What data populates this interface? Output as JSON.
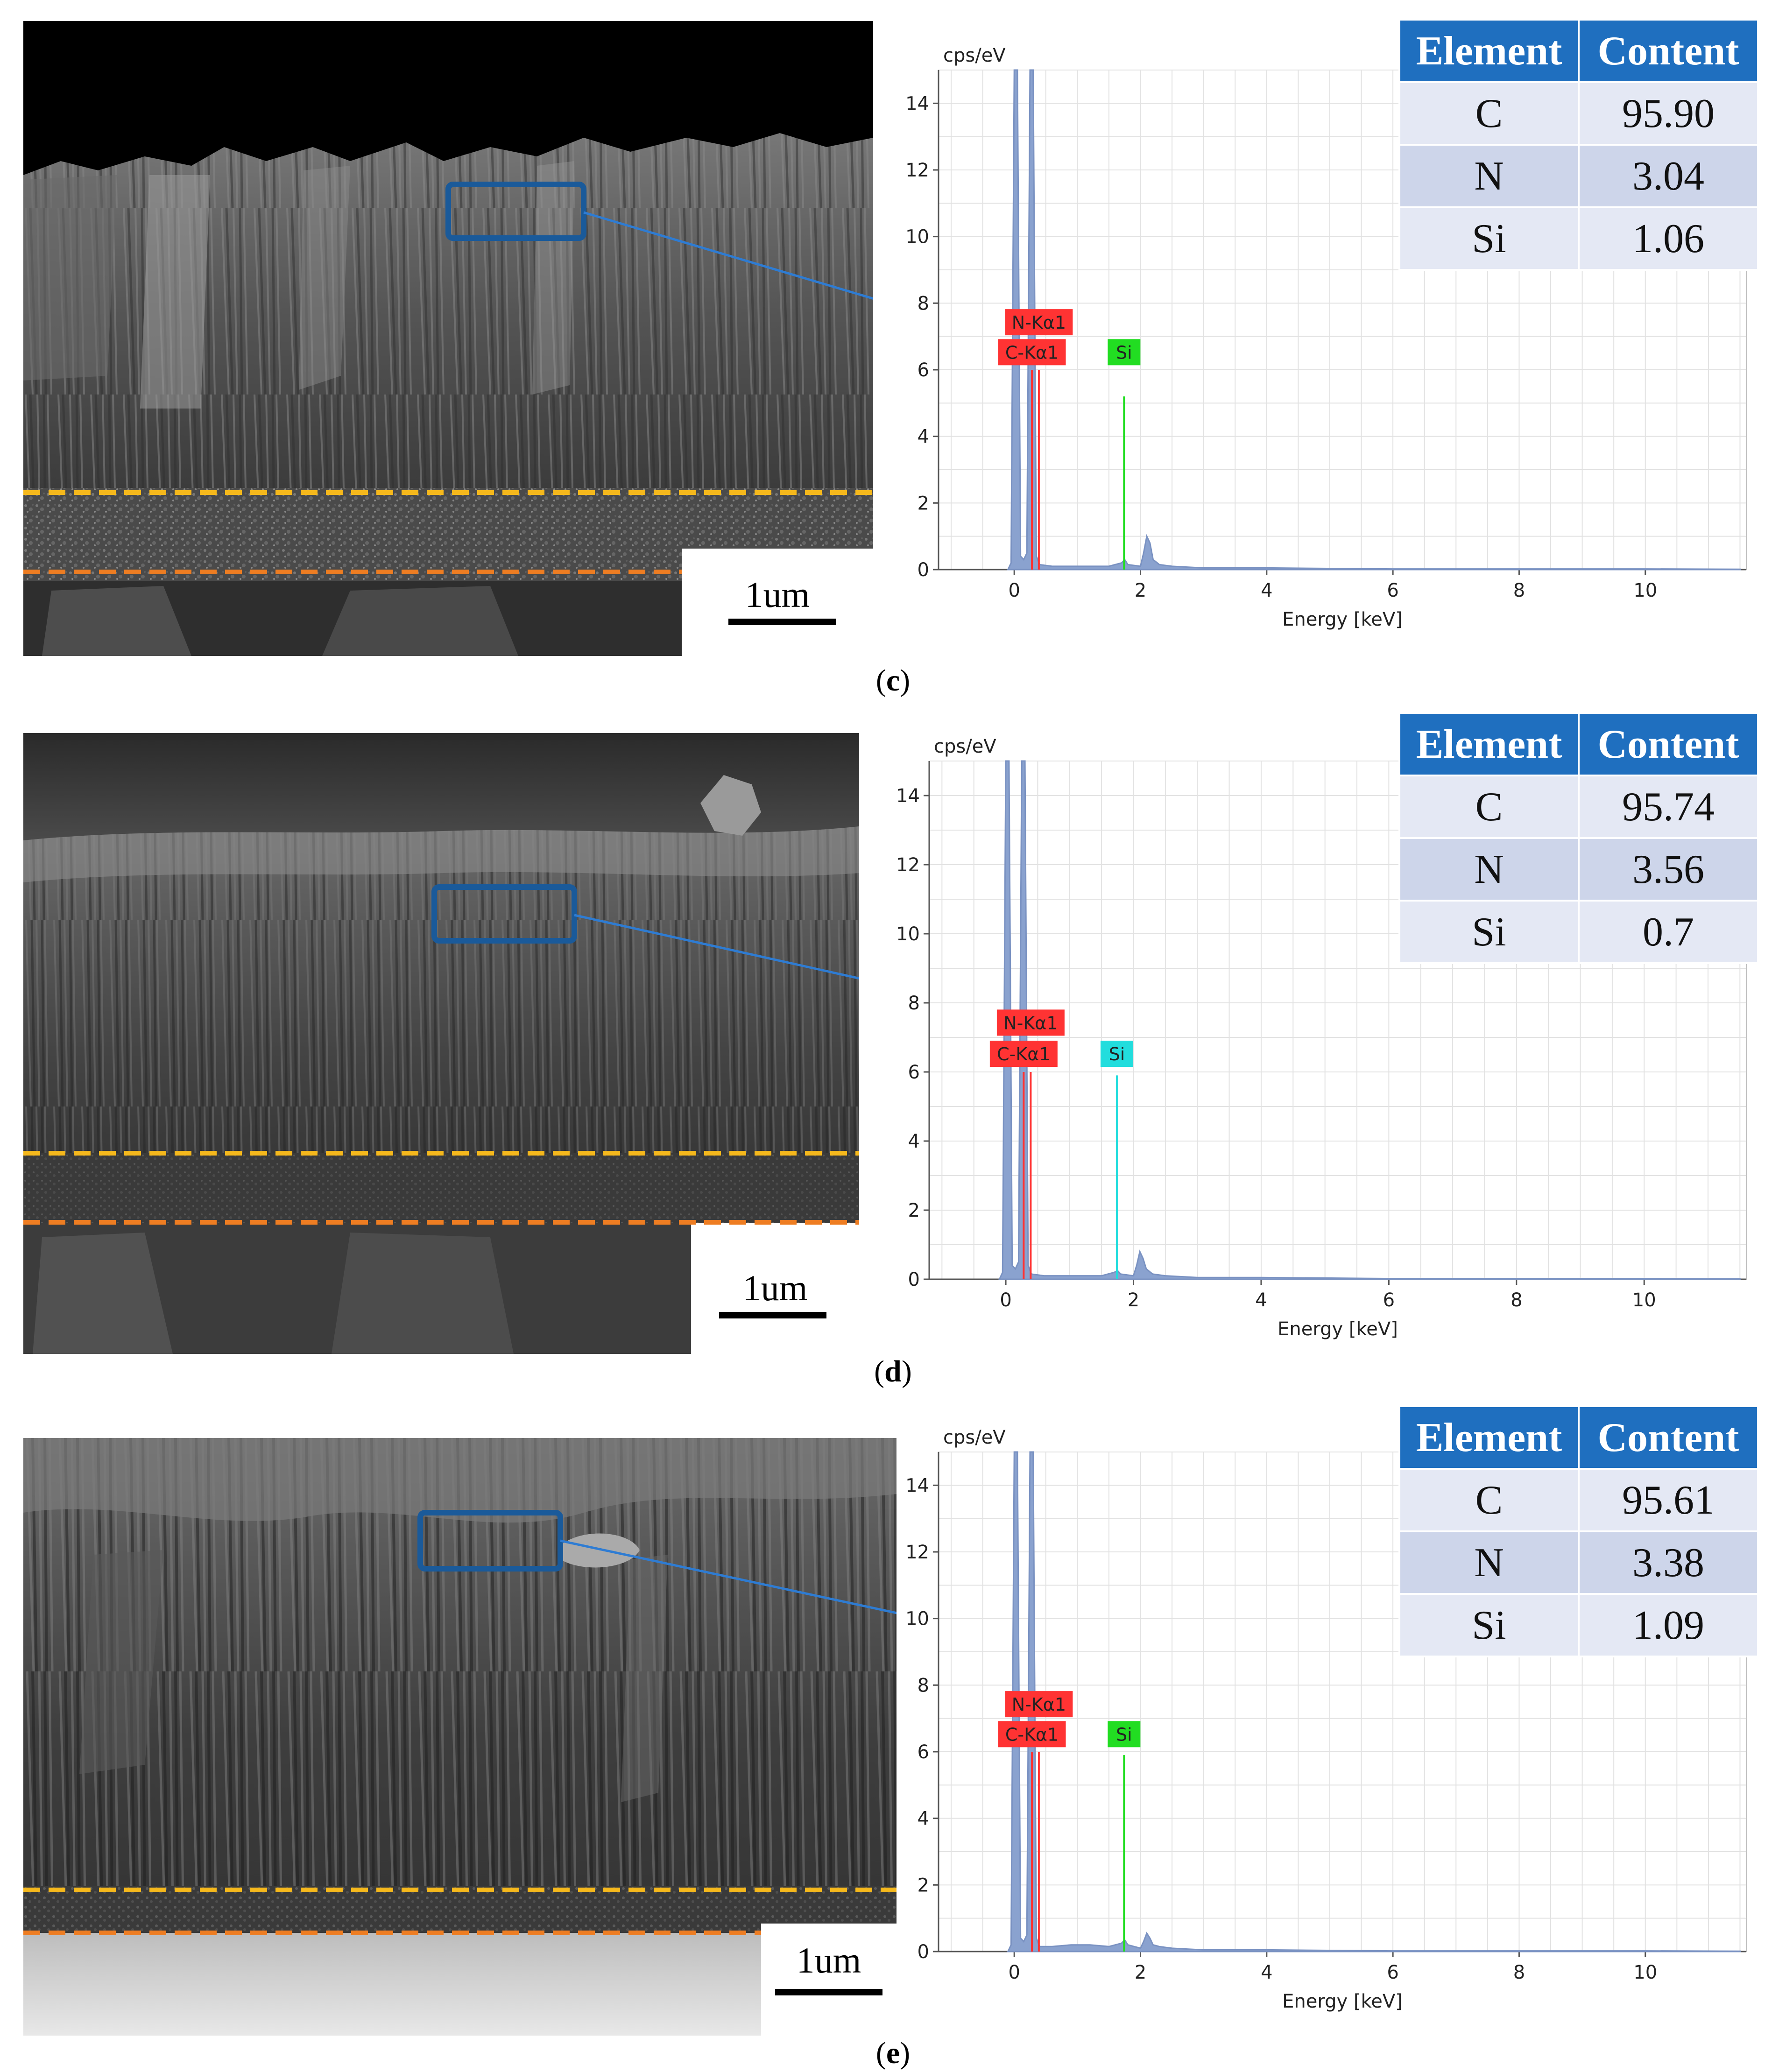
{
  "panels": [
    {
      "id": "c",
      "caption": "c",
      "scale_label": "1um",
      "chart_data": {
        "type": "line",
        "title": "",
        "ylabel": "cps/eV",
        "xlabel": "Energy [keV]",
        "xlim": [
          -1.2,
          11.6
        ],
        "ylim": [
          0,
          15
        ],
        "x_ticks": [
          0,
          2,
          4,
          6,
          8,
          10
        ],
        "y_ticks": [
          0,
          2,
          4,
          6,
          8,
          10,
          12,
          14
        ],
        "grid": true,
        "series": [
          {
            "x": [
              -0.1,
              -0.05,
              0.0,
              0.05,
              0.1,
              0.15,
              0.2,
              0.25,
              0.3,
              0.35,
              0.4,
              0.6,
              0.9,
              1.2,
              1.5,
              1.7,
              1.75,
              1.8,
              2.0,
              2.05,
              2.1,
              2.15,
              2.2,
              2.3,
              2.5,
              3,
              4,
              6,
              8,
              10,
              11.5
            ],
            "y": [
              0,
              0.2,
              15,
              15,
              0.4,
              0.3,
              0.5,
              15,
              15,
              0.4,
              0.15,
              0.1,
              0.1,
              0.1,
              0.1,
              0.2,
              0.3,
              0.15,
              0.1,
              0.5,
              1.0,
              0.8,
              0.3,
              0.15,
              0.1,
              0.05,
              0.05,
              0.02,
              0.02,
              0.02,
              0.01
            ]
          }
        ],
        "peak_labels": [
          {
            "text": "N-Kα1",
            "x": 0.39,
            "y": 7.4,
            "color": "#ff3333",
            "line_top": 6.0
          },
          {
            "text": "C-Kα1",
            "x": 0.28,
            "y": 6.5,
            "color": "#ff3333",
            "line_top": 6.0
          },
          {
            "text": "Si",
            "x": 1.74,
            "y": 6.5,
            "color": "#22dd22",
            "line_top": 5.2
          }
        ]
      },
      "table": {
        "header": [
          "Element",
          "Content"
        ],
        "rows": [
          [
            "C",
            "95.90"
          ],
          [
            "N",
            "3.04"
          ],
          [
            "Si",
            "1.06"
          ]
        ]
      }
    },
    {
      "id": "d",
      "caption": "d",
      "scale_label": "1um",
      "chart_data": {
        "type": "line",
        "title": "",
        "ylabel": "cps/eV",
        "xlabel": "Energy [keV]",
        "xlim": [
          -1.2,
          11.6
        ],
        "ylim": [
          0,
          15
        ],
        "x_ticks": [
          0,
          2,
          4,
          6,
          8,
          10
        ],
        "y_ticks": [
          0,
          2,
          4,
          6,
          8,
          10,
          12,
          14
        ],
        "grid": true,
        "series": [
          {
            "x": [
              -0.1,
              -0.05,
              0.0,
              0.05,
              0.1,
              0.15,
              0.2,
              0.25,
              0.3,
              0.35,
              0.4,
              0.6,
              0.9,
              1.2,
              1.5,
              1.7,
              1.75,
              1.8,
              2.0,
              2.05,
              2.1,
              2.15,
              2.2,
              2.3,
              2.5,
              3,
              4,
              6,
              8,
              10,
              11.5
            ],
            "y": [
              0,
              0.2,
              15,
              15,
              0.4,
              0.3,
              0.5,
              15,
              15,
              0.4,
              0.15,
              0.1,
              0.1,
              0.1,
              0.1,
              0.2,
              0.25,
              0.15,
              0.1,
              0.4,
              0.8,
              0.6,
              0.3,
              0.15,
              0.1,
              0.05,
              0.05,
              0.02,
              0.02,
              0.02,
              0.01
            ]
          }
        ],
        "peak_labels": [
          {
            "text": "N-Kα1",
            "x": 0.39,
            "y": 7.4,
            "color": "#ff3333",
            "line_top": 6.0
          },
          {
            "text": "C-Kα1",
            "x": 0.28,
            "y": 6.5,
            "color": "#ff3333",
            "line_top": 6.0
          },
          {
            "text": "Si",
            "x": 1.74,
            "y": 6.5,
            "color": "#22dddd",
            "line_top": 5.9
          }
        ]
      },
      "table": {
        "header": [
          "Element",
          "Content"
        ],
        "rows": [
          [
            "C",
            "95.74"
          ],
          [
            "N",
            "3.56"
          ],
          [
            "Si",
            "0.7"
          ]
        ]
      }
    },
    {
      "id": "e",
      "caption": "e",
      "scale_label": "1um",
      "chart_data": {
        "type": "line",
        "title": "",
        "ylabel": "cps/eV",
        "xlabel": "Energy [keV]",
        "xlim": [
          -1.2,
          11.6
        ],
        "ylim": [
          0,
          15
        ],
        "x_ticks": [
          0,
          2,
          4,
          6,
          8,
          10
        ],
        "y_ticks": [
          0,
          2,
          4,
          6,
          8,
          10,
          12,
          14
        ],
        "grid": true,
        "series": [
          {
            "x": [
              -0.1,
              -0.05,
              0.0,
              0.05,
              0.1,
              0.15,
              0.2,
              0.25,
              0.3,
              0.35,
              0.4,
              0.6,
              0.9,
              1.2,
              1.5,
              1.7,
              1.75,
              1.8,
              2.0,
              2.05,
              2.1,
              2.15,
              2.2,
              2.3,
              2.5,
              3,
              4,
              6,
              8,
              10,
              11.5
            ],
            "y": [
              0,
              0.2,
              15,
              15,
              0.4,
              0.3,
              0.5,
              15,
              15,
              0.4,
              0.15,
              0.15,
              0.2,
              0.2,
              0.15,
              0.25,
              0.35,
              0.2,
              0.1,
              0.3,
              0.55,
              0.4,
              0.2,
              0.15,
              0.1,
              0.05,
              0.05,
              0.02,
              0.02,
              0.02,
              0.01
            ]
          }
        ],
        "peak_labels": [
          {
            "text": "N-Kα1",
            "x": 0.39,
            "y": 7.4,
            "color": "#ff3333",
            "line_top": 6.0
          },
          {
            "text": "C-Kα1",
            "x": 0.28,
            "y": 6.5,
            "color": "#ff3333",
            "line_top": 6.0
          },
          {
            "text": "Si",
            "x": 1.74,
            "y": 6.5,
            "color": "#22dd22",
            "line_top": 5.9
          }
        ]
      },
      "table": {
        "header": [
          "Element",
          "Content"
        ],
        "rows": [
          [
            "C",
            "95.61"
          ],
          [
            "N",
            "3.38"
          ],
          [
            "Si",
            "1.09"
          ]
        ]
      }
    }
  ]
}
